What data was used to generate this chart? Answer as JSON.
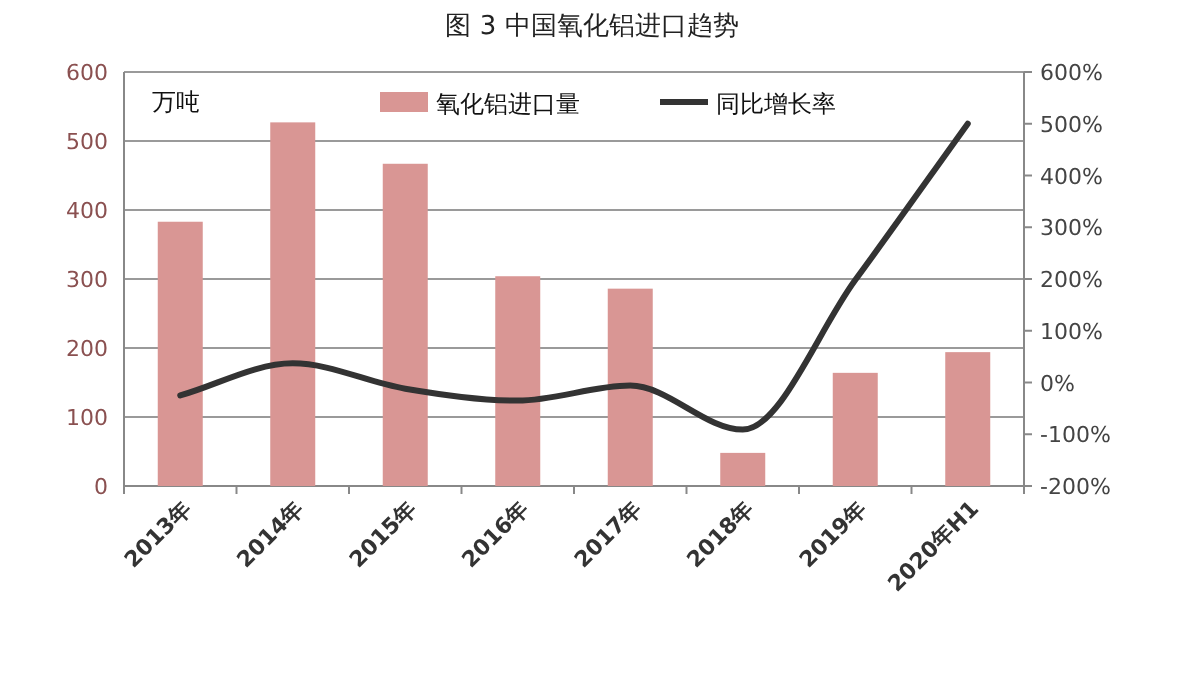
{
  "chart_data": {
    "type": "bar",
    "title": "图 3  中国氧化铝进口趋势",
    "ylabel": "万吨",
    "categories": [
      "2013年",
      "2014年",
      "2015年",
      "2016年",
      "2017年",
      "2018年",
      "2019年",
      "2020年H1"
    ],
    "series": [
      {
        "name": "氧化铝进口量",
        "color": "#d99694",
        "values": [
          383,
          527,
          467,
          304,
          286,
          48,
          164,
          194
        ]
      },
      {
        "name": "同比增长率",
        "type": "line",
        "axis": "y2",
        "color": "#333333",
        "values": [
          -25,
          37,
          -12,
          -35,
          -6,
          -91,
          198,
          500
        ]
      }
    ],
    "ylim": [
      0,
      600
    ],
    "yticks": [
      0,
      100,
      200,
      300,
      400,
      500,
      600
    ],
    "y2lim": [
      -200,
      600
    ],
    "y2ticks": [
      {
        "value": -200,
        "label": "-200%"
      },
      {
        "value": -100,
        "label": "-100%"
      },
      {
        "value": 0,
        "label": "0%"
      },
      {
        "value": 100,
        "label": "100%"
      },
      {
        "value": 200,
        "label": "200%"
      },
      {
        "value": 300,
        "label": "300%"
      },
      {
        "value": 400,
        "label": "400%"
      },
      {
        "value": 500,
        "label": "500%"
      },
      {
        "value": 600,
        "label": "600%"
      }
    ],
    "grid": "y",
    "legend": "top"
  }
}
